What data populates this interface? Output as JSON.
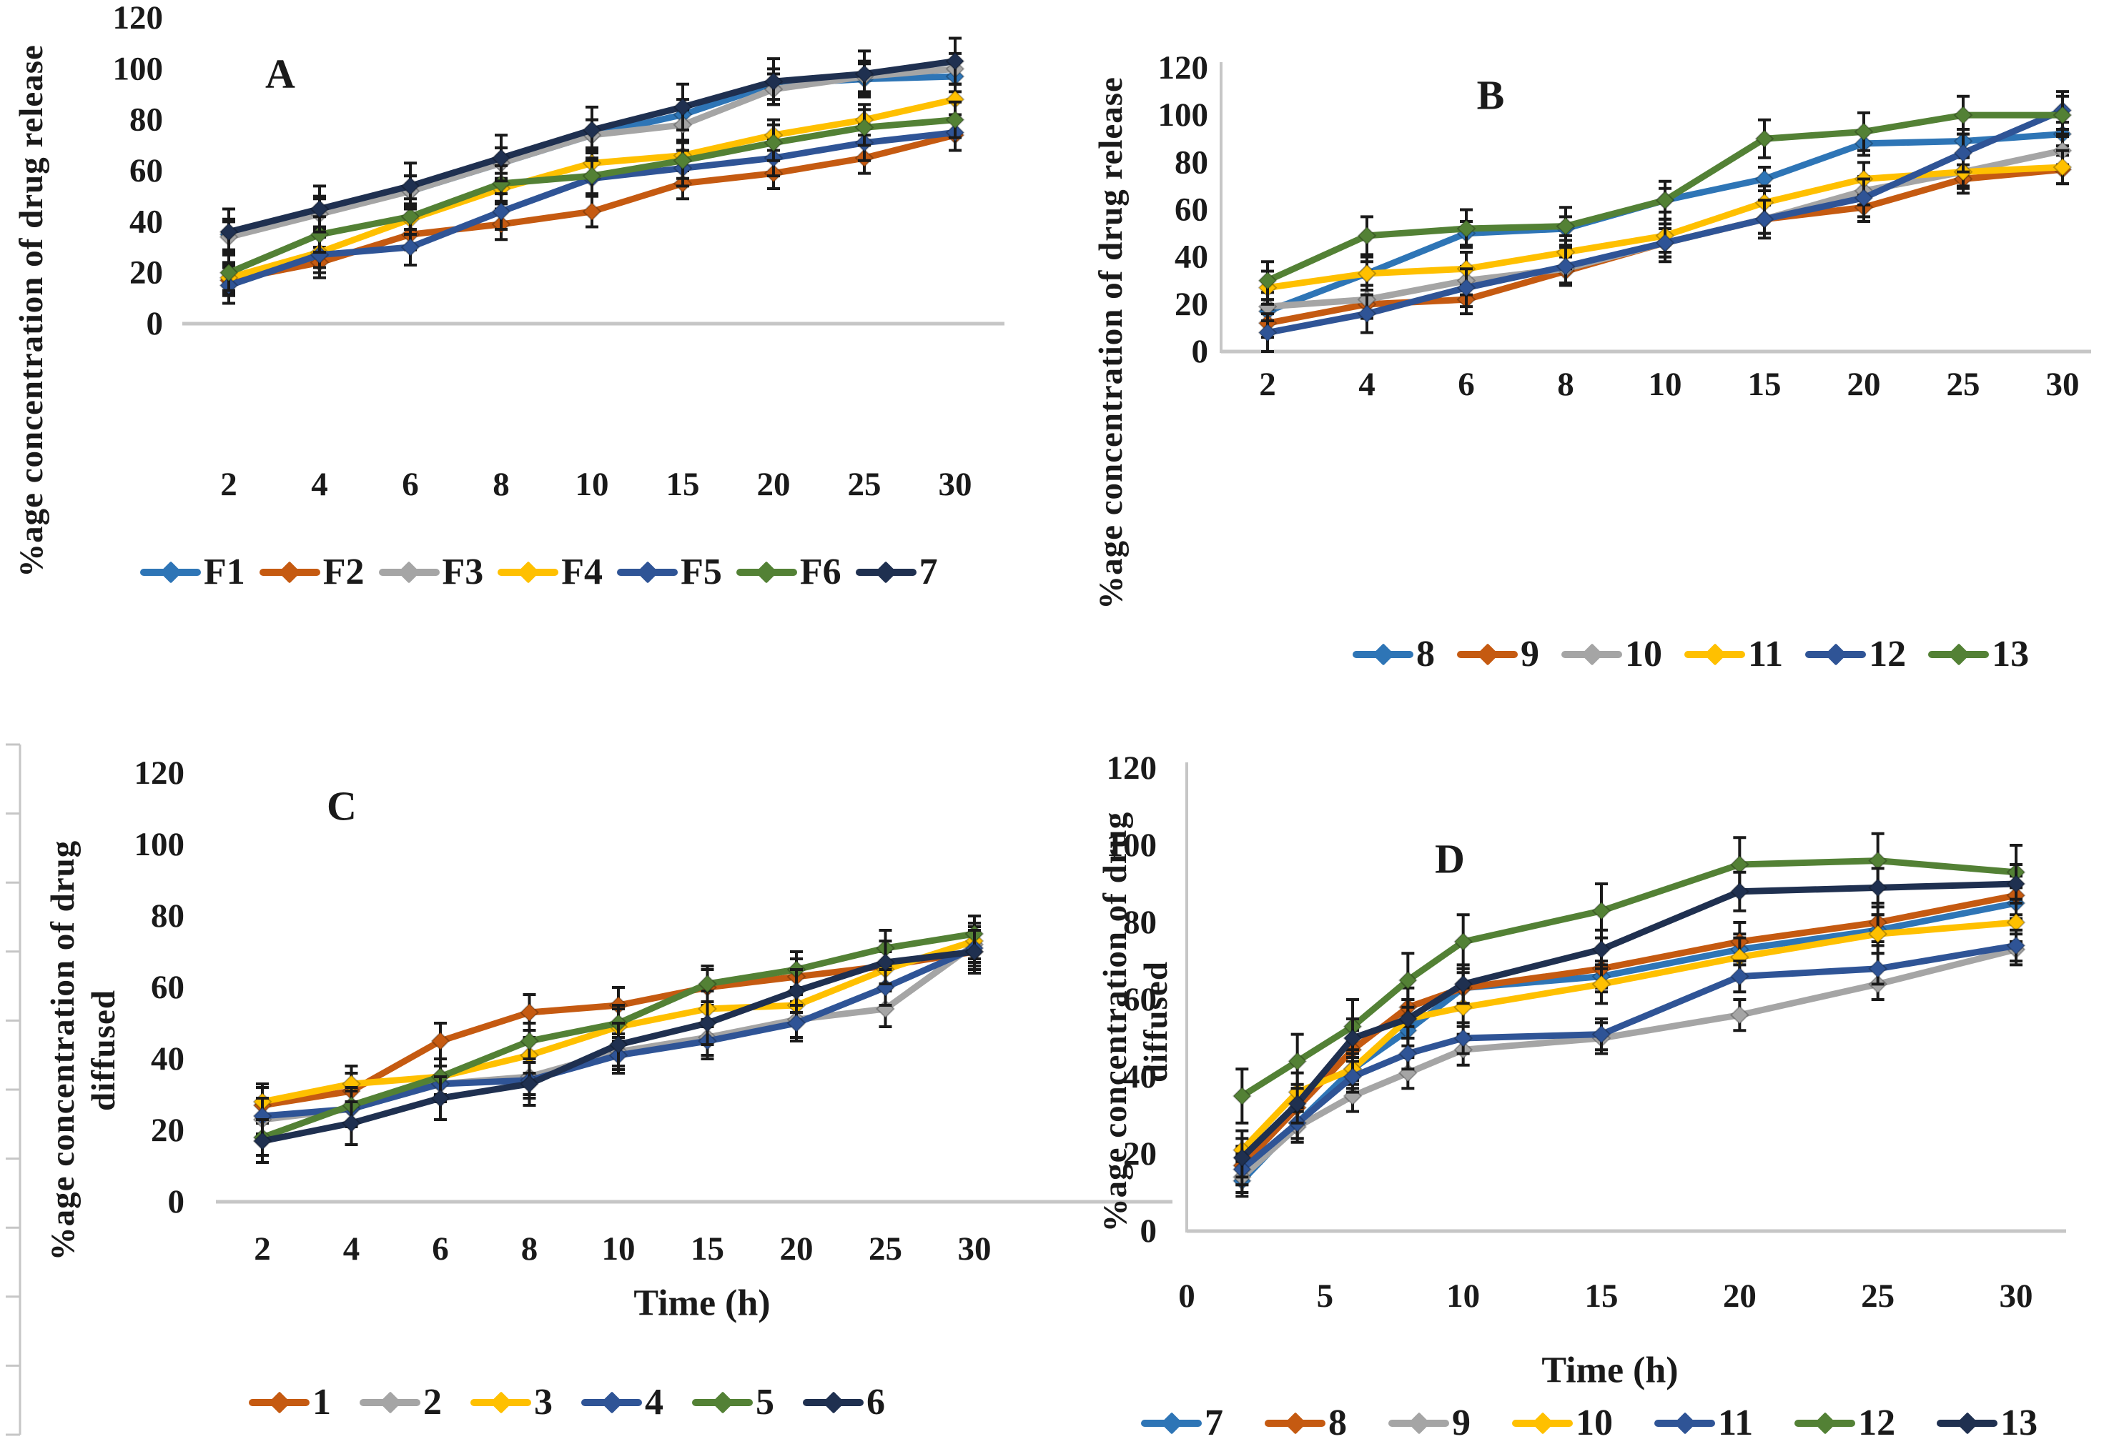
{
  "figure": {
    "description": "Four-panel line figure of percentage drug release / diffusion over time with error bars",
    "axis_color": "#C6C6C6",
    "error_bar_color": "#1a1a1a"
  },
  "chart_data": [
    {
      "id": "A",
      "type": "line",
      "panel_label": "A",
      "title": "",
      "xlabel": "",
      "ylabel_lines": [
        "%age concentration of drug release"
      ],
      "x_type": "categorical",
      "categories": [
        "2",
        "4",
        "6",
        "8",
        "10",
        "15",
        "20",
        "25",
        "30"
      ],
      "ylim": [
        0,
        120
      ],
      "yticks": [
        0,
        20,
        40,
        60,
        80,
        100,
        120
      ],
      "grid": false,
      "legend_position": "bottom",
      "series": [
        {
          "name": "F1",
          "color": "#2E75B6",
          "err": 6,
          "values": [
            35,
            44,
            52,
            63,
            74,
            82,
            94,
            96,
            97
          ]
        },
        {
          "name": "F2",
          "color": "#C55A11",
          "err": 6,
          "values": [
            17,
            24,
            35,
            39,
            44,
            55,
            59,
            65,
            74
          ]
        },
        {
          "name": "F3",
          "color": "#A5A5A5",
          "err": 6,
          "values": [
            34,
            43,
            52,
            63,
            74,
            78,
            92,
            97,
            100
          ]
        },
        {
          "name": "F4",
          "color": "#FFC000",
          "err": 6,
          "values": [
            18,
            28,
            41,
            53,
            63,
            66,
            74,
            80,
            88
          ]
        },
        {
          "name": "F5",
          "color": "#2F5496",
          "err": 7,
          "values": [
            15,
            27,
            30,
            44,
            57,
            61,
            65,
            71,
            75
          ]
        },
        {
          "name": "F6",
          "color": "#538135",
          "err": 7,
          "values": [
            20,
            35,
            42,
            55,
            58,
            64,
            71,
            77,
            80
          ]
        },
        {
          "name": "7",
          "color": "#1F3050",
          "err": 9,
          "values": [
            36,
            45,
            54,
            65,
            76,
            85,
            95,
            98,
            103
          ]
        }
      ]
    },
    {
      "id": "B",
      "type": "line",
      "panel_label": "B",
      "title": "",
      "xlabel": "",
      "ylabel_lines": [
        "%age concentration of drug release"
      ],
      "x_type": "categorical",
      "categories": [
        "2",
        "4",
        "6",
        "8",
        "10",
        "15",
        "20",
        "25",
        "30"
      ],
      "ylim": [
        0,
        120
      ],
      "yticks": [
        0,
        20,
        40,
        60,
        80,
        100,
        120
      ],
      "grid": false,
      "legend_position": "bottom",
      "series": [
        {
          "name": "8",
          "color": "#2E75B6",
          "err": 5,
          "values": [
            17,
            33,
            50,
            52,
            64,
            73,
            88,
            89,
            92
          ]
        },
        {
          "name": "9",
          "color": "#C55A11",
          "err": 6,
          "values": [
            12,
            20,
            22,
            34,
            46,
            56,
            61,
            73,
            77
          ]
        },
        {
          "name": "10",
          "color": "#A5A5A5",
          "err": 6,
          "values": [
            19,
            22,
            30,
            35,
            46,
            56,
            68,
            76,
            85
          ]
        },
        {
          "name": "11",
          "color": "#FFC000",
          "err": 7,
          "values": [
            27,
            33,
            35,
            42,
            49,
            63,
            73,
            76,
            78
          ]
        },
        {
          "name": "12",
          "color": "#2F5496",
          "err": 8,
          "values": [
            8,
            16,
            27,
            36,
            46,
            56,
            65,
            84,
            102
          ]
        },
        {
          "name": "13",
          "color": "#538135",
          "err": 8,
          "values": [
            30,
            49,
            52,
            53,
            64,
            90,
            93,
            100,
            100
          ]
        }
      ]
    },
    {
      "id": "C",
      "type": "line",
      "panel_label": "C",
      "title": "",
      "xlabel": "Time (h)",
      "ylabel_lines": [
        "%age concentration of drug",
        "diffused"
      ],
      "x_type": "categorical",
      "categories": [
        "2",
        "4",
        "6",
        "8",
        "10",
        "15",
        "20",
        "25",
        "30"
      ],
      "ylim": [
        0,
        120
      ],
      "yticks": [
        0,
        20,
        40,
        60,
        80,
        100,
        120
      ],
      "grid": false,
      "legend_position": "bottom",
      "series": [
        {
          "name": "1",
          "color": "#C55A11",
          "err": 5,
          "values": [
            27,
            31,
            45,
            53,
            55,
            60,
            63,
            66,
            70
          ]
        },
        {
          "name": "2",
          "color": "#A5A5A5",
          "err": 5,
          "values": [
            23,
            26,
            33,
            35,
            42,
            46,
            51,
            54,
            72
          ]
        },
        {
          "name": "3",
          "color": "#FFC000",
          "err": 5,
          "values": [
            28,
            33,
            35,
            41,
            49,
            54,
            55,
            65,
            73
          ]
        },
        {
          "name": "4",
          "color": "#2F5496",
          "err": 5,
          "values": [
            24,
            26,
            33,
            34,
            41,
            45,
            50,
            60,
            71
          ]
        },
        {
          "name": "5",
          "color": "#538135",
          "err": 5,
          "values": [
            18,
            27,
            35,
            45,
            50,
            61,
            65,
            71,
            75
          ]
        },
        {
          "name": "6",
          "color": "#1F3050",
          "err": 6,
          "values": [
            17,
            22,
            29,
            33,
            44,
            50,
            59,
            67,
            70
          ]
        }
      ]
    },
    {
      "id": "D",
      "type": "line",
      "panel_label": "D",
      "title": "",
      "xlabel": "Time (h)",
      "ylabel_lines": [
        "%age concentration of drug",
        "diffused"
      ],
      "x_type": "linear",
      "x": [
        2,
        4,
        6,
        8,
        10,
        15,
        20,
        25,
        30
      ],
      "xlim": [
        0,
        30
      ],
      "xticks": [
        0,
        5,
        10,
        15,
        20,
        25,
        30
      ],
      "ylim": [
        0,
        120
      ],
      "yticks": [
        0,
        20,
        40,
        60,
        80,
        100,
        120
      ],
      "grid": false,
      "legend_position": "bottom",
      "series": [
        {
          "name": "7",
          "color": "#2E75B6",
          "err": 4,
          "values": [
            13,
            28,
            42,
            52,
            63,
            66,
            73,
            78,
            85
          ]
        },
        {
          "name": "8",
          "color": "#C55A11",
          "err": 5,
          "values": [
            17,
            32,
            47,
            58,
            63,
            68,
            75,
            80,
            87
          ]
        },
        {
          "name": "9",
          "color": "#A5A5A5",
          "err": 4,
          "values": [
            14,
            27,
            35,
            41,
            47,
            50,
            56,
            64,
            73
          ]
        },
        {
          "name": "10",
          "color": "#FFC000",
          "err": 5,
          "values": [
            21,
            36,
            42,
            55,
            58,
            64,
            71,
            77,
            80
          ]
        },
        {
          "name": "11",
          "color": "#2F5496",
          "err": 4,
          "values": [
            16,
            28,
            40,
            46,
            50,
            51,
            66,
            68,
            74
          ]
        },
        {
          "name": "12",
          "color": "#538135",
          "err": 7,
          "values": [
            35,
            44,
            53,
            65,
            75,
            83,
            95,
            96,
            93
          ]
        },
        {
          "name": "13",
          "color": "#1F3050",
          "err": 5,
          "values": [
            19,
            33,
            50,
            55,
            64,
            73,
            88,
            89,
            90
          ]
        }
      ]
    }
  ]
}
